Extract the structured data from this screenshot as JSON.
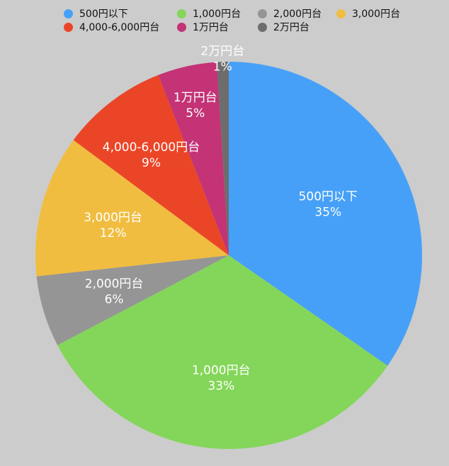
{
  "chart_data": {
    "type": "pie",
    "categories": [
      "500円以下",
      "1,000円台",
      "2,000円台",
      "3,000円台",
      "4,000-6,000円台",
      "1万円台",
      "2万円台"
    ],
    "values": [
      35,
      33,
      6,
      12,
      9,
      5,
      1
    ],
    "value_labels": [
      "35%",
      "33%",
      "6%",
      "12%",
      "9%",
      "5%",
      "1%"
    ],
    "colors": [
      "#47a0f7",
      "#84d65a",
      "#959595",
      "#f0bd40",
      "#eb4527",
      "#c33376",
      "#6d6d6d"
    ],
    "start_angle_deg": 0,
    "direction": "clockwise",
    "legend_position": "top"
  }
}
